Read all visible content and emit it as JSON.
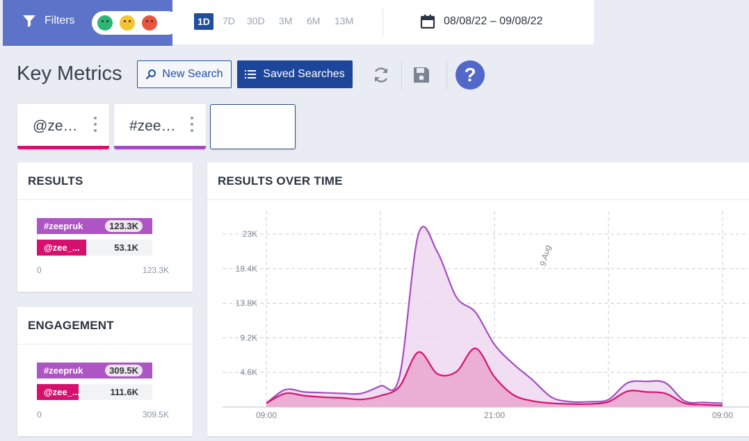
{
  "filters": {
    "label": "Filters"
  },
  "sentiment": {
    "positive": "positive-face-icon",
    "neutral": "neutral-face-icon",
    "negative": "negative-face-icon"
  },
  "ranges": [
    "1D",
    "7D",
    "30D",
    "3M",
    "6M",
    "13M"
  ],
  "active_range": "1D",
  "date_range": "08/08/22 – 09/08/22",
  "title": "Key Metrics",
  "toolbar": {
    "new_search": "New Search",
    "saved_searches": "Saved Searches",
    "help": "?"
  },
  "tabs": [
    {
      "label": "@ze…",
      "color": "#d6106f"
    },
    {
      "label": "#zee…",
      "color": "#a34dc0"
    },
    {
      "label": "",
      "color": ""
    }
  ],
  "results": {
    "title": "RESULTS",
    "rows": [
      {
        "label": "#zeepruk",
        "value": "123.3K",
        "fraction": 1.0,
        "color": "#ad55c3"
      },
      {
        "label": "@zee_...",
        "value": "53.1K",
        "fraction": 0.43,
        "color": "#d6106f"
      }
    ],
    "axis_min": "0",
    "axis_max": "123.3K"
  },
  "engagement": {
    "title": "ENGAGEMENT",
    "rows": [
      {
        "label": "#zeepruk",
        "value": "309.5K",
        "fraction": 1.0,
        "color": "#ad55c3"
      },
      {
        "label": "@zee_...",
        "value": "111.6K",
        "fraction": 0.36,
        "color": "#d6106f"
      }
    ],
    "axis_min": "0",
    "axis_max": "309.5K"
  },
  "chart_title": "RESULTS OVER TIME",
  "chart_data": {
    "type": "area",
    "title": "RESULTS OVER TIME",
    "y_ticks": [
      "23K",
      "18.4K",
      "13.8K",
      "9.2K",
      "4.6K"
    ],
    "y_tick_values": [
      23000,
      18400,
      13800,
      9200,
      4600
    ],
    "x_ticks": [
      "09:00",
      "21:00",
      "09:00"
    ],
    "x_tick_hours": [
      0,
      12,
      24
    ],
    "ylim": [
      0,
      23000
    ],
    "annotation": "9 Aug",
    "annotation_hour": 15,
    "grid": true,
    "x_hours": [
      0,
      1,
      2,
      3,
      4,
      5,
      6,
      7,
      8,
      9,
      10,
      11,
      12,
      13,
      14,
      15,
      16,
      17,
      18,
      19,
      20,
      21,
      22,
      23,
      24
    ],
    "series": [
      {
        "name": "#zeepruk",
        "color": "#a34dc0",
        "fill": "#eed8f1",
        "values": [
          500,
          2300,
          2000,
          1900,
          1800,
          1800,
          2800,
          4000,
          23000,
          20600,
          14600,
          12600,
          8300,
          5700,
          3600,
          1300,
          700,
          700,
          1000,
          3200,
          3400,
          3200,
          800,
          600,
          500
        ]
      },
      {
        "name": "@zee_...",
        "color": "#d6106f",
        "fill": "#eaa9d0",
        "values": [
          500,
          1800,
          1500,
          1300,
          1200,
          1000,
          1500,
          2700,
          7300,
          4400,
          4700,
          7800,
          4000,
          1600,
          800,
          500,
          400,
          400,
          700,
          2100,
          2000,
          1800,
          500,
          300,
          200
        ]
      }
    ]
  }
}
